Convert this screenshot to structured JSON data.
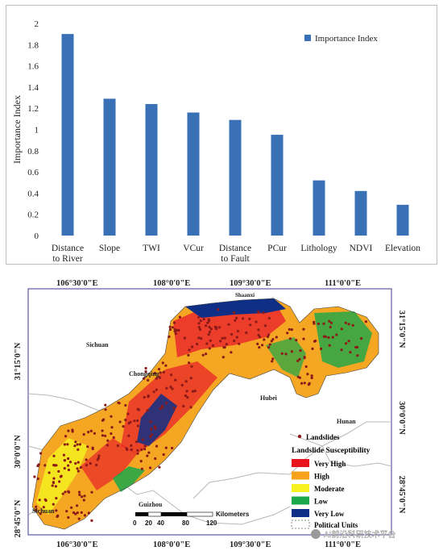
{
  "chart_data": [
    {
      "type": "bar",
      "categories": [
        "Distance\nto River",
        "Slope",
        "TWI",
        "VCur",
        "Distance\nto Fault",
        "PCur",
        "Lithology",
        "NDVI",
        "Elevation"
      ],
      "series": [
        {
          "name": "Importance Index",
          "values": [
            1.9,
            1.29,
            1.24,
            1.16,
            1.09,
            0.95,
            0.52,
            0.42,
            0.29
          ]
        }
      ],
      "ylabel": "Importance Index",
      "ylim": [
        0,
        2
      ],
      "yticks": [
        "0",
        "0.2",
        "0.4",
        "0.6",
        "0.8",
        "1",
        "1.2",
        "1.4",
        "1.6",
        "1.8",
        "2"
      ],
      "legend": "top-right",
      "grid": false,
      "bar_color": "#3a70b5"
    }
  ],
  "map": {
    "lon_labels_top": [
      "106°30'0\"E",
      "108°0'0\"E",
      "109°30'0\"E",
      "111°0'0\"E"
    ],
    "lon_labels_bottom": [
      "106°30'0\"E",
      "108°0'0\"E",
      "109°30'0\"E",
      "111°0'0\"E"
    ],
    "lat_labels_left": [
      "31°15'0\"N",
      "30°0'0\"N",
      "28°45'0\"N"
    ],
    "lat_labels_right": [
      "31°15'0\"N",
      "30°0'0\"N",
      "28°45'0\"N"
    ],
    "place_labels": [
      "Sichuan",
      "Chongqing",
      "Hubei",
      "Hunan",
      "Sichuan",
      "Guizhou",
      "Shaanxi"
    ],
    "legend": {
      "landslides_label": "Landslides",
      "title": "Landslide Susceptibility",
      "classes": [
        {
          "label": "Very High",
          "color": "#e8141c"
        },
        {
          "label": "High",
          "color": "#f7a21a"
        },
        {
          "label": "Moderate",
          "color": "#f5f220"
        },
        {
          "label": "Low",
          "color": "#1aa84a"
        },
        {
          "label": "Very Low",
          "color": "#0f2f86"
        }
      ],
      "political_label": "Political Units"
    },
    "scale_bar": {
      "ticks": [
        "0",
        "20",
        "40",
        "80",
        "120"
      ],
      "unit": "Kilometers"
    },
    "watermark": "AI前沿科研技术平台"
  }
}
